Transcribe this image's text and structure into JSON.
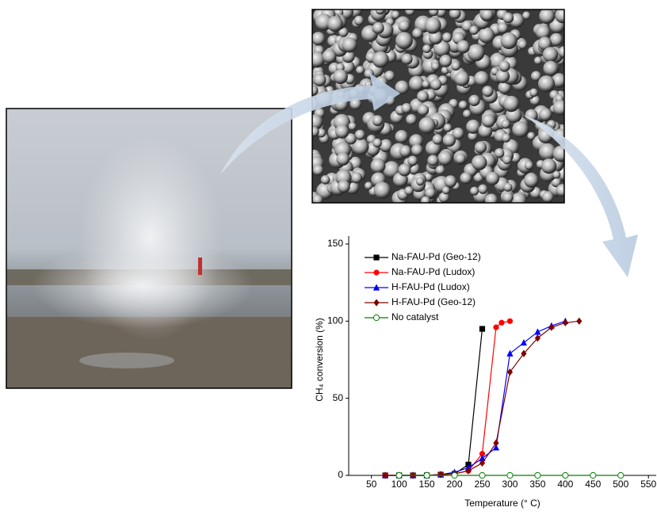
{
  "chart_data": {
    "type": "line",
    "xlabel": "Temperature (° C)",
    "ylabel": "CH₄ conversion (%)",
    "xlim": [
      9,
      564
    ],
    "xticks": [
      50,
      100,
      150,
      200,
      250,
      300,
      350,
      400,
      450,
      500,
      550
    ],
    "ylim": [
      0,
      150
    ],
    "yticks": [
      0,
      50,
      100,
      150
    ],
    "legend": "upper left",
    "series": [
      {
        "name": "Na-FAU-Pd (Geo-12)",
        "color": "#000000",
        "marker": "square",
        "x": [
          75,
          100,
          125,
          150,
          175,
          200,
          225,
          250
        ],
        "values": [
          0,
          0,
          0,
          0,
          0.5,
          1,
          7,
          95
        ]
      },
      {
        "name": "Na-FAU-Pd (Ludox)",
        "color": "#ff0000",
        "marker": "circle",
        "x": [
          75,
          100,
          125,
          150,
          175,
          200,
          225,
          250,
          275,
          285,
          300
        ],
        "values": [
          0,
          0,
          0,
          0,
          0.5,
          1,
          3,
          14,
          96,
          99,
          100
        ]
      },
      {
        "name": "H-FAU-Pd (Ludox)",
        "color": "#0000ff",
        "marker": "triangle",
        "x": [
          75,
          100,
          125,
          150,
          175,
          200,
          225,
          250,
          275,
          300,
          325,
          350,
          375,
          400
        ],
        "values": [
          0,
          0,
          0,
          0,
          0.5,
          2,
          5,
          11,
          18,
          79,
          86,
          93,
          97,
          100
        ]
      },
      {
        "name": "H-FAU-Pd (Geo-12)",
        "color": "#800000",
        "marker": "diamond",
        "x": [
          75,
          100,
          125,
          150,
          175,
          200,
          225,
          250,
          275,
          300,
          325,
          350,
          375,
          400,
          425
        ],
        "values": [
          0,
          0,
          0,
          0,
          0.5,
          1,
          3,
          8,
          21,
          67,
          79,
          89,
          96,
          99,
          100
        ]
      },
      {
        "name": "No catalyst",
        "color": "#008000",
        "marker": "open-circle",
        "x": [
          100,
          150,
          200,
          250,
          300,
          350,
          400,
          450,
          500
        ],
        "values": [
          0,
          0,
          0,
          0,
          0,
          0,
          0,
          0,
          0
        ]
      }
    ]
  }
}
